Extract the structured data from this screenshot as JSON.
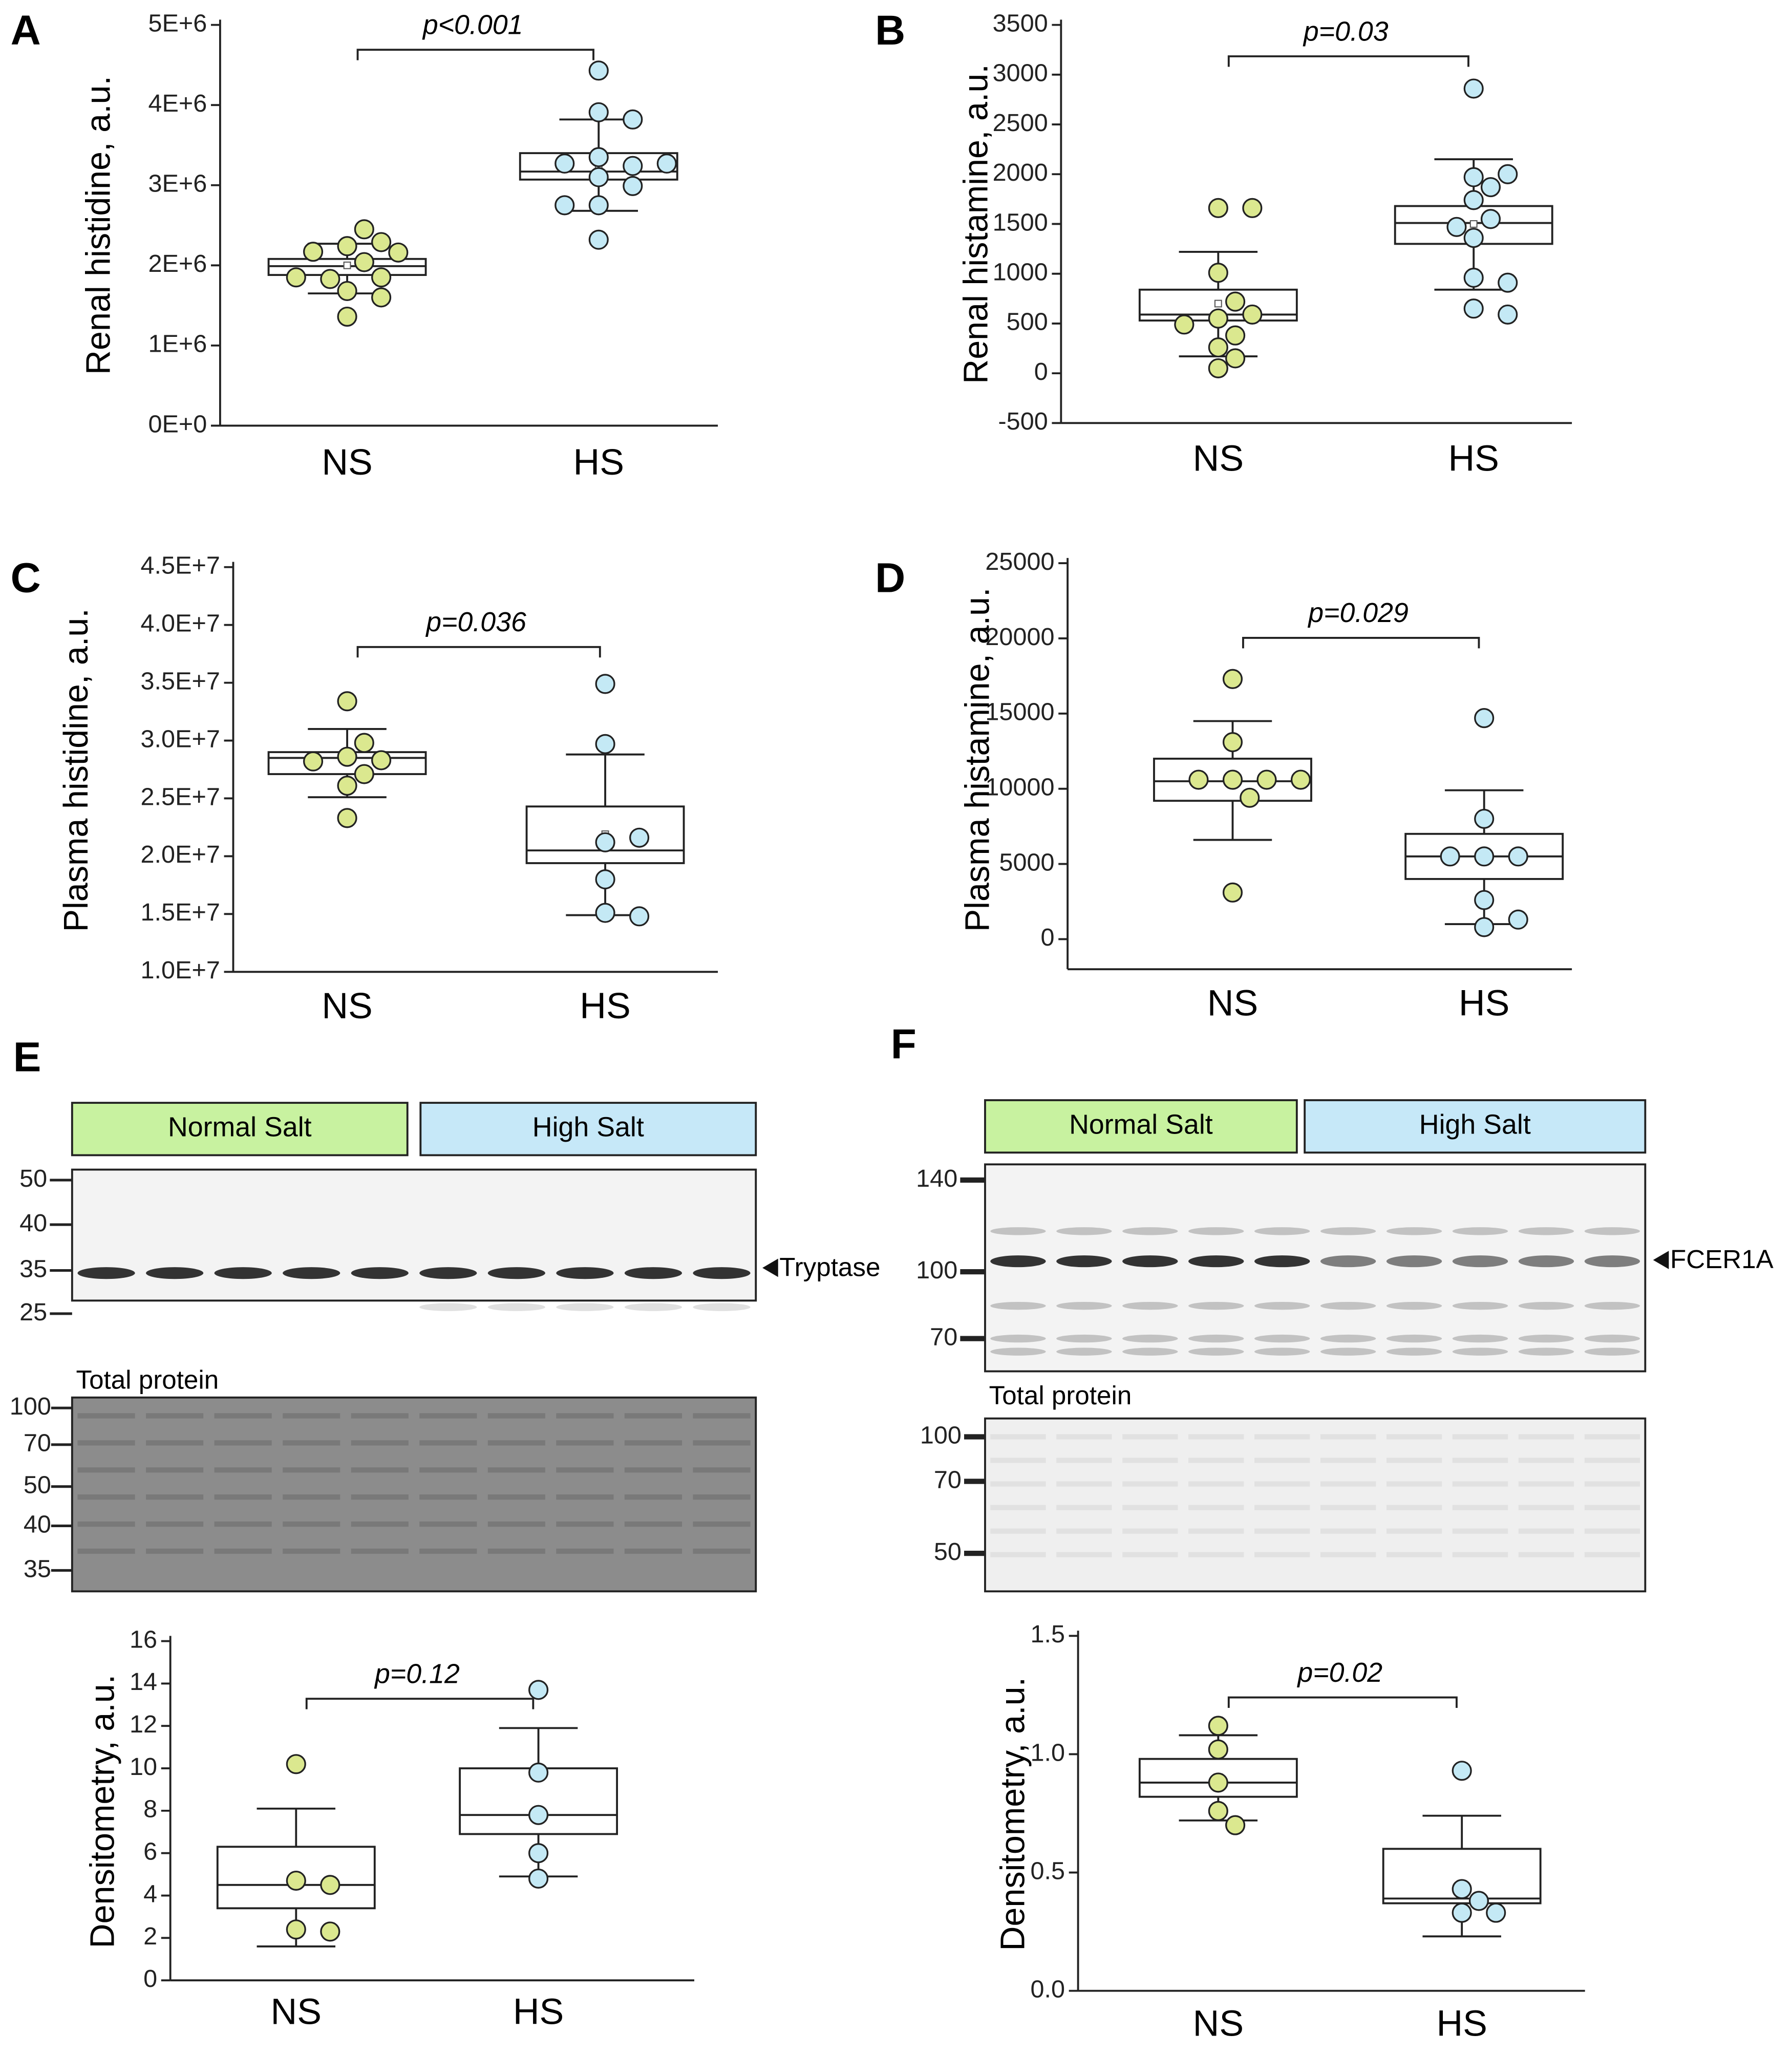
{
  "chart_data": [
    {
      "type": "box",
      "panel": "A",
      "ylabel": "Renal histidine, a.u.",
      "annotation": "p<0.001",
      "categories": [
        "NS",
        "HS"
      ],
      "ylim": [
        0,
        5000000
      ],
      "yticks": [
        {
          "value": 0,
          "label": "0E+0"
        },
        {
          "value": 1000000,
          "label": "1E+6"
        },
        {
          "value": 2000000,
          "label": "2E+6"
        },
        {
          "value": 3000000,
          "label": "3E+6"
        },
        {
          "value": 4000000,
          "label": "4E+6"
        },
        {
          "value": 5000000,
          "label": "5E+6"
        }
      ],
      "groups": [
        {
          "color": "#dbe88f",
          "points": [
            2240000,
            2290000,
            1680000,
            2040000,
            1830000,
            2170000,
            1850000,
            1850000,
            2160000,
            2450000,
            1600000,
            1360000
          ],
          "q1": 1880000,
          "median": 1990000,
          "q3": 2080000,
          "whisker_low": 1650000,
          "whisker_high": 2270000,
          "mean": 2000000
        },
        {
          "color": "#c4e9f5",
          "points": [
            4430000,
            3910000,
            3820000,
            3350000,
            3100000,
            3240000,
            3270000,
            3270000,
            2990000,
            2750000,
            2750000,
            2320000
          ],
          "q1": 3070000,
          "median": 3170000,
          "q3": 3400000,
          "whisker_low": 2680000,
          "whisker_high": 3820000,
          "mean": 3200000
        }
      ]
    },
    {
      "type": "box",
      "panel": "B",
      "ylabel": "Renal histamine, a.u.",
      "annotation": "p=0.03",
      "categories": [
        "NS",
        "HS"
      ],
      "ylim": [
        -500,
        3500
      ],
      "yticks": [
        -500,
        0,
        500,
        1000,
        1500,
        2000,
        2500,
        3000,
        3500
      ],
      "groups": [
        {
          "color": "#dbe88f",
          "points": [
            1660,
            1660,
            1010,
            550,
            590,
            720,
            380,
            260,
            150,
            50,
            490
          ],
          "q1": 530,
          "median": 590,
          "q3": 840,
          "whisker_low": 170,
          "whisker_high": 1220,
          "mean": 700
        },
        {
          "color": "#c4e9f5",
          "points": [
            2860,
            1970,
            2000,
            1870,
            1740,
            1550,
            1470,
            1360,
            960,
            910,
            650,
            590
          ],
          "q1": 1300,
          "median": 1510,
          "q3": 1680,
          "whisker_low": 840,
          "whisker_high": 2150,
          "mean": 1500
        }
      ]
    },
    {
      "type": "box",
      "panel": "C",
      "ylabel": "Plasma histidine, a.u.",
      "annotation": "p=0.036",
      "categories": [
        "NS",
        "HS"
      ],
      "ylim": [
        10000000,
        45000000
      ],
      "yticks": [
        {
          "value": 10000000,
          "label": "1.0E+7"
        },
        {
          "value": 15000000,
          "label": "1.5E+7"
        },
        {
          "value": 20000000,
          "label": "2.0E+7"
        },
        {
          "value": 25000000,
          "label": "2.5E+7"
        },
        {
          "value": 30000000,
          "label": "3.0E+7"
        },
        {
          "value": 35000000,
          "label": "3.5E+7"
        },
        {
          "value": 40000000,
          "label": "4.0E+7"
        },
        {
          "value": 45000000,
          "label": "4.5E+7"
        }
      ],
      "groups": [
        {
          "color": "#dbe88f",
          "points": [
            33400000,
            28600000,
            28300000,
            29800000,
            28200000,
            27100000,
            26100000,
            23300000
          ],
          "q1": 27100000,
          "median": 28500000,
          "q3": 29000000,
          "whisker_low": 25100000,
          "whisker_high": 31000000,
          "mean": 28200000
        },
        {
          "color": "#c4e9f5",
          "points": [
            34900000,
            29700000,
            21200000,
            21600000,
            18000000,
            15100000,
            14800000
          ],
          "q1": 19400000,
          "median": 20500000,
          "q3": 24300000,
          "whisker_low": 14900000,
          "whisker_high": 28800000,
          "mean": 21900000
        }
      ]
    },
    {
      "type": "box",
      "panel": "D",
      "ylabel": "Plasma histamine, a.u.",
      "annotation": "p=0.029",
      "categories": [
        "NS",
        "HS"
      ],
      "ylim": [
        -2000,
        25000
      ],
      "yticks": [
        0,
        5000,
        10000,
        15000,
        20000,
        25000
      ],
      "groups": [
        {
          "color": "#dbe88f",
          "points": [
            17300,
            13100,
            10600,
            10600,
            10600,
            10600,
            9400,
            3100
          ],
          "q1": 9200,
          "median": 10500,
          "q3": 12000,
          "whisker_low": 6600,
          "whisker_high": 14500,
          "mean": 10500
        },
        {
          "color": "#c4e9f5",
          "points": [
            14700,
            8000,
            5500,
            5500,
            5500,
            2600,
            800,
            1300
          ],
          "q1": 4000,
          "median": 5500,
          "q3": 7000,
          "whisker_low": 1000,
          "whisker_high": 9900
        }
      ]
    },
    {
      "type": "box",
      "ylabel": "Densitometry, a.u.",
      "annotation": "p=0.12",
      "categories": [
        "NS",
        "HS"
      ],
      "ylim": [
        0,
        16
      ],
      "yticks": [
        0,
        2,
        4,
        6,
        8,
        10,
        12,
        14,
        16
      ],
      "groups": [
        {
          "color": "#dbe88f",
          "points": [
            10.2,
            4.7,
            4.5,
            2.4,
            2.3
          ],
          "q1": 3.4,
          "median": 4.5,
          "q3": 6.3,
          "whisker_low": 1.6,
          "whisker_high": 8.1
        },
        {
          "color": "#c4e9f5",
          "points": [
            13.7,
            9.8,
            7.8,
            6,
            4.8
          ],
          "q1": 6.9,
          "median": 7.8,
          "q3": 10,
          "whisker_low": 4.9,
          "whisker_high": 11.9
        }
      ]
    },
    {
      "type": "box",
      "ylabel": "Densitometry, a.u.",
      "annotation": "p=0.02",
      "categories": [
        "NS",
        "HS"
      ],
      "ylim": [
        0,
        1.5
      ],
      "yticks": [
        {
          "value": 0,
          "label": "0.0"
        },
        0.5,
        {
          "value": 1,
          "label": "1.0"
        },
        1.5
      ],
      "groups": [
        {
          "color": "#dbe88f",
          "points": [
            1.12,
            1.02,
            0.88,
            0.76,
            0.7
          ],
          "q1": 0.82,
          "median": 0.88,
          "q3": 0.98,
          "whisker_low": 0.72,
          "whisker_high": 1.08
        },
        {
          "color": "#c4e9f5",
          "points": [
            0.93,
            0.43,
            0.38,
            0.33,
            0.33
          ],
          "q1": 0.37,
          "median": 0.39,
          "q3": 0.6,
          "whisker_low": 0.23,
          "whisker_high": 0.74
        }
      ]
    }
  ],
  "blots": [
    {
      "panel": "E",
      "groups": [
        "Normal Salt",
        "High Salt"
      ],
      "markers": [
        "50",
        "40",
        "35",
        "25"
      ],
      "band_label": "Tryptase",
      "total_label": "Total protein",
      "total_markers": [
        "100",
        "70",
        "50",
        "40",
        "35"
      ]
    },
    {
      "panel": "F",
      "groups": [
        "Normal Salt",
        "High Salt"
      ],
      "markers": [
        "140",
        "100",
        "70"
      ],
      "band_label": "FCER1A",
      "total_label": "Total protein",
      "total_markers": [
        "100",
        "70",
        "50"
      ]
    }
  ]
}
